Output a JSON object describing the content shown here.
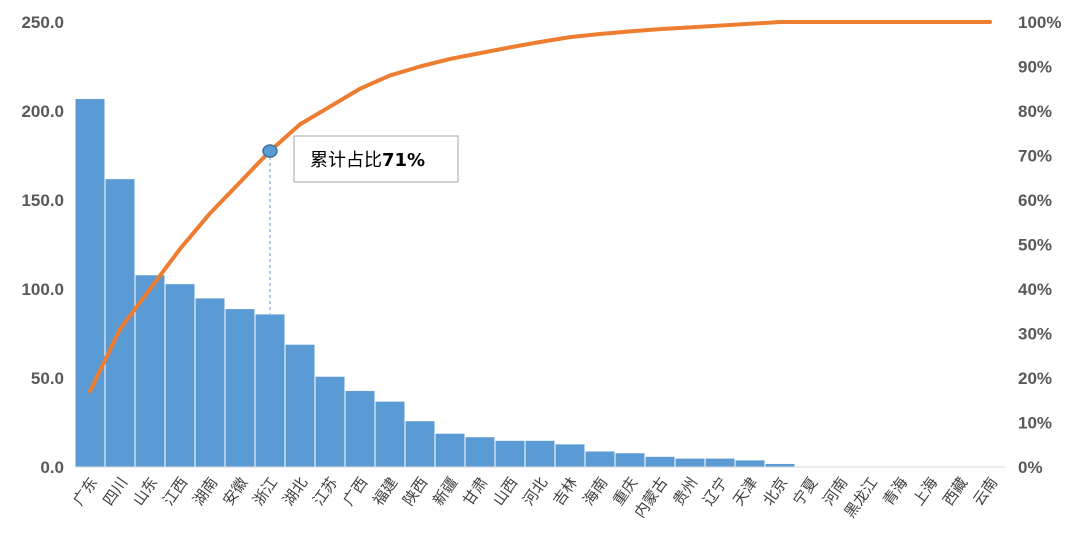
{
  "chart_data": {
    "type": "bar",
    "categories": [
      "广东",
      "四川",
      "山东",
      "江西",
      "湖南",
      "安徽",
      "浙江",
      "湖北",
      "江苏",
      "广西",
      "福建",
      "陕西",
      "新疆",
      "甘肃",
      "山西",
      "河北",
      "吉林",
      "海南",
      "重庆",
      "内蒙古",
      "贵州",
      "辽宁",
      "天津",
      "北京",
      "宁夏",
      "河南",
      "黑龙江",
      "青海",
      "上海",
      "西藏",
      "云南"
    ],
    "series": [
      {
        "type": "bar",
        "axis": "left",
        "color": "#5B9BD5",
        "values": [
          207,
          162,
          108,
          103,
          95,
          89,
          86,
          69,
          51,
          43,
          37,
          26,
          19,
          17,
          15,
          15,
          13,
          9,
          8,
          6,
          5,
          5,
          4,
          2,
          0,
          0,
          0,
          0,
          0,
          0,
          0
        ]
      },
      {
        "type": "line",
        "axis": "right",
        "color": "#ED7D31",
        "values": [
          17,
          31,
          40,
          49,
          57,
          64,
          71,
          77,
          81,
          85,
          88,
          90,
          91.7,
          93,
          94.3,
          95.5,
          96.6,
          97.3,
          97.9,
          98.4,
          98.8,
          99.2,
          99.6,
          100,
          100,
          100,
          100,
          100,
          100,
          100,
          100
        ]
      }
    ],
    "y_left": {
      "min": 0,
      "max": 250,
      "ticks": [
        "0.0",
        "50.0",
        "100.0",
        "150.0",
        "200.0",
        "250.0"
      ]
    },
    "y_right": {
      "min": 0,
      "max": 100,
      "ticks": [
        "0%",
        "10%",
        "20%",
        "30%",
        "40%",
        "50%",
        "60%",
        "70%",
        "80%",
        "90%",
        "100%"
      ]
    },
    "grid": false,
    "annotation": {
      "text_prefix": "累计占比",
      "text_value": "71%",
      "category_index": 6,
      "value": 71
    }
  }
}
